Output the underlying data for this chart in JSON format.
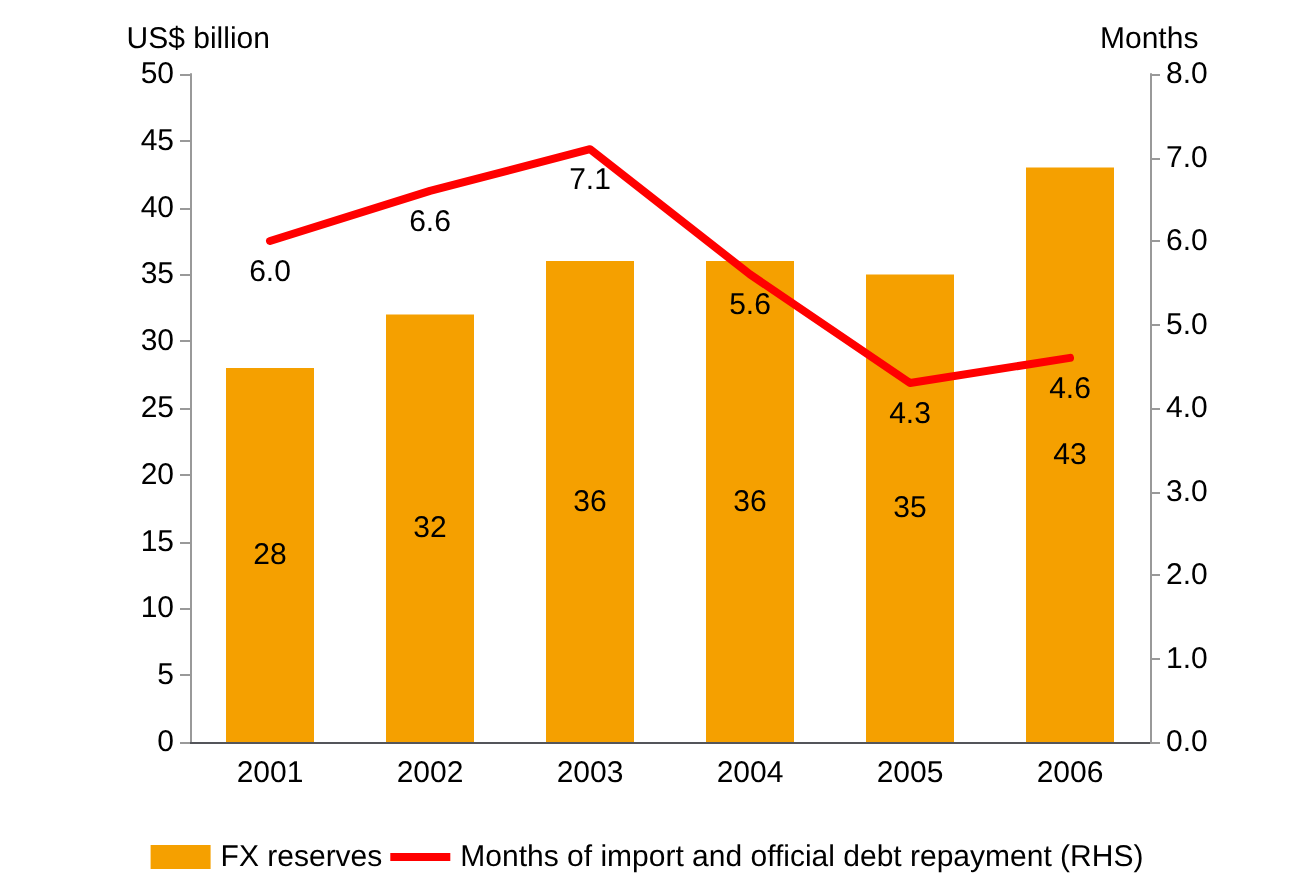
{
  "chart_data": {
    "type": "bar",
    "ylabel": "US$ billion",
    "y2label": "Months",
    "categories": [
      "2001",
      "2002",
      "2003",
      "2004",
      "2005",
      "2006"
    ],
    "series": [
      {
        "name": "FX reserves",
        "color": "#f5a000",
        "values": [
          28,
          32,
          36,
          36,
          35,
          43
        ]
      },
      {
        "name": "Months of import and official debt repayment (RHS)",
        "type": "line",
        "axis": "y2",
        "color": "#ff0000",
        "values": [
          6.0,
          6.6,
          7.1,
          5.6,
          4.3,
          4.6
        ],
        "value_labels": [
          "6.0",
          "6.6",
          "7.1",
          "5.6",
          "4.3",
          "4.6"
        ]
      }
    ],
    "ylim": [
      0,
      50
    ],
    "yticks": [
      0,
      5,
      10,
      15,
      20,
      25,
      30,
      35,
      40,
      45,
      50
    ],
    "y2lim": [
      0,
      8
    ],
    "y2ticks": [
      {
        "value": 0,
        "label": "0.0"
      },
      {
        "value": 1,
        "label": "1.0"
      },
      {
        "value": 2,
        "label": "2.0"
      },
      {
        "value": 3,
        "label": "3.0"
      },
      {
        "value": 4,
        "label": "4.0"
      },
      {
        "value": 5,
        "label": "5.0"
      },
      {
        "value": 6,
        "label": "6.0"
      },
      {
        "value": 7,
        "label": "7.0"
      },
      {
        "value": 8,
        "label": "8.0"
      }
    ],
    "data_labels": true,
    "grid": false,
    "legend": "bottom",
    "marker": "none",
    "line_style": "solid"
  }
}
